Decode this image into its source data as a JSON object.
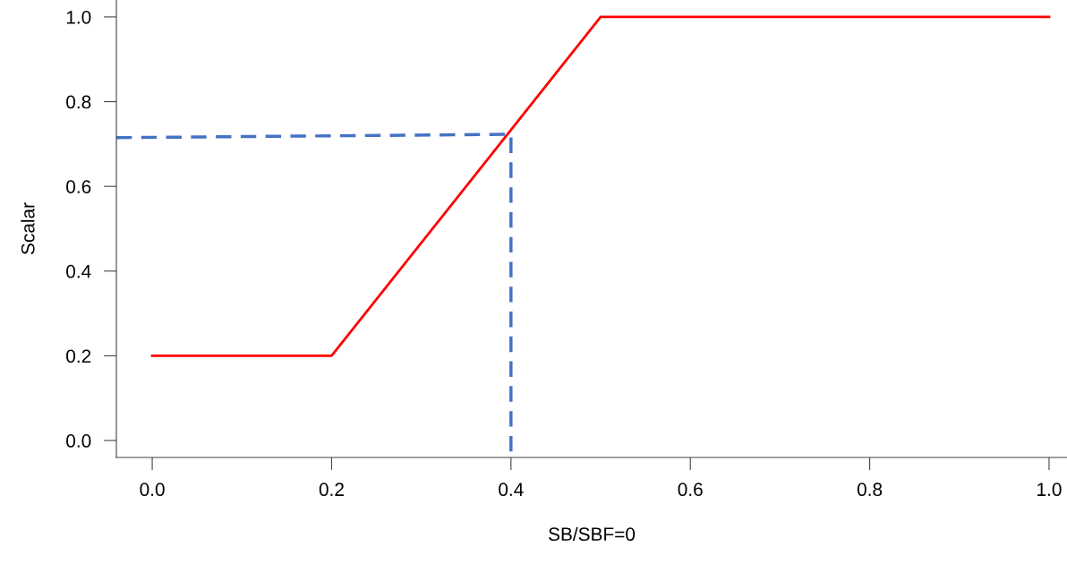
{
  "chart_data": {
    "type": "line",
    "xlabel": "SB/SBF=0",
    "ylabel": "Scalar",
    "xlim": [
      -0.04,
      1.02
    ],
    "ylim": [
      -0.04,
      1.04
    ],
    "xticks": [
      {
        "value": 0,
        "label": "0.0"
      },
      {
        "value": 0.2,
        "label": "0.2"
      },
      {
        "value": 0.4,
        "label": "0.4"
      },
      {
        "value": 0.6,
        "label": "0.6"
      },
      {
        "value": 0.8,
        "label": "0.8"
      },
      {
        "value": 1,
        "label": "1.0"
      }
    ],
    "yticks": [
      {
        "value": 0,
        "label": "0.0"
      },
      {
        "value": 0.2,
        "label": "0.2"
      },
      {
        "value": 0.4,
        "label": "0.4"
      },
      {
        "value": 0.6,
        "label": "0.6"
      },
      {
        "value": 0.8,
        "label": "0.8"
      },
      {
        "value": 1,
        "label": "1.0"
      }
    ],
    "grid": false,
    "legend": false,
    "marker": "none",
    "series": [
      {
        "color": "#ff0000",
        "line_style": "solid",
        "x": [
          0,
          0.2,
          0.5,
          1.0
        ],
        "values": [
          0.2,
          0.2,
          1.0,
          1.0
        ]
      },
      {
        "color": "#4472c4",
        "line_style": "dashed",
        "x": [
          -0.04,
          0.4,
          0.4
        ],
        "values": [
          0.715,
          0.723,
          -0.04
        ]
      }
    ]
  }
}
